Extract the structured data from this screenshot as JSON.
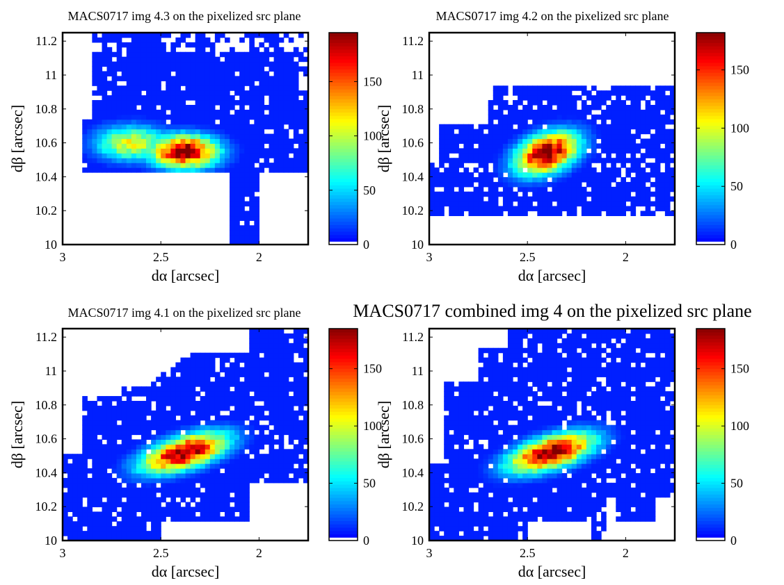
{
  "chart_data": [
    {
      "type": "heatmap",
      "title": "MACS0717 img 4.3 on the pixelized src plane",
      "xlabel": "dα [arcsec]",
      "ylabel": "dβ [arcsec]",
      "xlim": [
        3,
        1.75
      ],
      "ylim": [
        10,
        11.25
      ],
      "xticks": [
        3,
        2.5,
        2
      ],
      "xtick_labels": [
        "3",
        "2.5",
        "2"
      ],
      "yticks": [
        10,
        10.2,
        10.4,
        10.6,
        10.8,
        11,
        11.2
      ],
      "ytick_labels": [
        "10",
        "10.2",
        "10.4",
        "10.6",
        "10.8",
        "11",
        "11.2"
      ],
      "colorbar": {
        "min": 0,
        "max": 195,
        "ticks": [
          0,
          50,
          100,
          150
        ],
        "tick_labels": [
          "0",
          "50",
          "100",
          "150"
        ],
        "colormap": "jet"
      },
      "source": {
        "peak_x": 2.38,
        "peak_y": 10.56,
        "peak_value": 195,
        "shape": "truncated-west-lobe"
      }
    },
    {
      "type": "heatmap",
      "title": "MACS0717 img 4.2 on the pixelized src plane",
      "xlabel": "dα [arcsec]",
      "ylabel": "dβ [arcsec]",
      "xlim": [
        3,
        1.75
      ],
      "ylim": [
        10,
        11.25
      ],
      "xticks": [
        3,
        2.5,
        2
      ],
      "xtick_labels": [
        "3",
        "2.5",
        "2"
      ],
      "yticks": [
        10,
        10.2,
        10.4,
        10.6,
        10.8,
        11,
        11.2
      ],
      "ytick_labels": [
        "10",
        "10.2",
        "10.4",
        "10.6",
        "10.8",
        "11",
        "11.2"
      ],
      "colorbar": {
        "min": 0,
        "max": 182,
        "ticks": [
          0,
          50,
          100,
          150
        ],
        "tick_labels": [
          "0",
          "50",
          "100",
          "150"
        ],
        "colormap": "jet"
      },
      "source": {
        "peak_x": 2.4,
        "peak_y": 10.54,
        "peak_value": 182,
        "shape": "compact-ellipse"
      }
    },
    {
      "type": "heatmap",
      "title": "MACS0717 img 4.1 on the pixelized src plane",
      "xlabel": "dα [arcsec]",
      "ylabel": "dβ [arcsec]",
      "xlim": [
        3,
        1.75
      ],
      "ylim": [
        10,
        11.25
      ],
      "xticks": [
        3,
        2.5,
        2
      ],
      "xtick_labels": [
        "3",
        "2.5",
        "2"
      ],
      "yticks": [
        10,
        10.2,
        10.4,
        10.6,
        10.8,
        11,
        11.2
      ],
      "ytick_labels": [
        "10",
        "10.2",
        "10.4",
        "10.6",
        "10.8",
        "11",
        "11.2"
      ],
      "colorbar": {
        "min": 0,
        "max": 185,
        "ticks": [
          0,
          50,
          100,
          150
        ],
        "tick_labels": [
          "0",
          "50",
          "100",
          "150"
        ],
        "colormap": "jet"
      },
      "source": {
        "peak_x": 2.38,
        "peak_y": 10.52,
        "peak_value": 185,
        "shape": "diagonal-ellipse"
      }
    },
    {
      "type": "heatmap",
      "title": "MACS0717 combined img 4 on the pixelized src plane",
      "xlabel": "dα [arcsec]",
      "ylabel": "dβ [arcsec]",
      "xlim": [
        3,
        1.75
      ],
      "ylim": [
        10,
        11.25
      ],
      "xticks": [
        3,
        2.5,
        2
      ],
      "xtick_labels": [
        "3",
        "2.5",
        "2"
      ],
      "yticks": [
        10,
        10.2,
        10.4,
        10.6,
        10.8,
        11,
        11.2
      ],
      "ytick_labels": [
        "10",
        "10.2",
        "10.4",
        "10.6",
        "10.8",
        "11",
        "11.2"
      ],
      "colorbar": {
        "min": 0,
        "max": 185,
        "ticks": [
          0,
          50,
          100,
          150
        ],
        "tick_labels": [
          "0",
          "50",
          "100",
          "150"
        ],
        "colormap": "jet"
      },
      "source": {
        "peak_x": 2.38,
        "peak_y": 10.53,
        "peak_value": 185,
        "shape": "diagonal-ellipse-full"
      }
    }
  ]
}
